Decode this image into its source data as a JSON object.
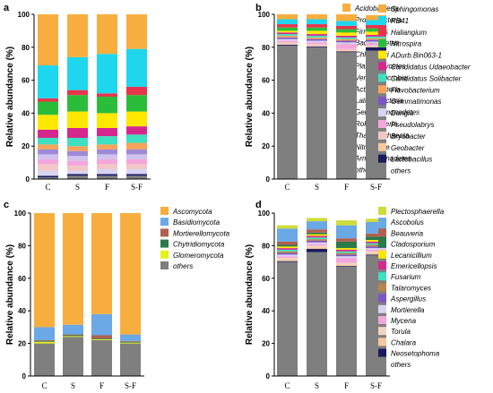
{
  "chart_data": [
    {
      "panel": "a",
      "type": "bar",
      "stacked": true,
      "ylabel": "Relative abundance (%)",
      "ylim": [
        0,
        100
      ],
      "yticks": [
        "0",
        "20",
        "40",
        "60",
        "80",
        "100"
      ],
      "categories": [
        "C",
        "S",
        "F",
        "S-F"
      ],
      "series": [
        {
          "name": "others",
          "color": "#7f7f7f",
          "values": [
            1,
            2,
            2,
            2
          ]
        },
        {
          "name": "Armatimonadetes",
          "color": "#1a1a5e",
          "values": [
            1,
            1,
            1,
            1
          ]
        },
        {
          "name": "Nitrospirae",
          "color": "#d8d4f2",
          "values": [
            3,
            2,
            3,
            3
          ]
        },
        {
          "name": "Thaumarchaeota",
          "color": "#f2c6c6",
          "values": [
            4,
            3,
            3,
            3
          ]
        },
        {
          "name": "Rokubacteria",
          "color": "#f4a6dc",
          "values": [
            3,
            3,
            3,
            3
          ]
        },
        {
          "name": "Gemmatimonadetes",
          "color": "#cfc2ec",
          "values": [
            3,
            3,
            3,
            3
          ]
        },
        {
          "name": "Latescibacteria",
          "color": "#9f8ad8",
          "values": [
            3,
            3,
            3,
            3
          ]
        },
        {
          "name": "Actinobacteria",
          "color": "#f7a35c",
          "values": [
            3,
            3,
            3,
            4
          ]
        },
        {
          "name": "Verrucomicrobia",
          "color": "#3de0c0",
          "values": [
            4,
            5,
            5,
            5
          ]
        },
        {
          "name": "Planctomycetes",
          "color": "#d6278f",
          "values": [
            5,
            6,
            5,
            5
          ]
        },
        {
          "name": "Chloroflexi",
          "color": "#ffe800",
          "values": [
            9,
            10,
            9,
            9
          ]
        },
        {
          "name": "Bacteroidetes",
          "color": "#2bbd3a",
          "values": [
            8,
            10,
            10,
            10
          ]
        },
        {
          "name": "Firmicutes",
          "color": "#e8344a",
          "values": [
            2,
            3,
            2,
            5
          ]
        },
        {
          "name": "Proteobacteria",
          "color": "#1fd6ef",
          "values": [
            20,
            20,
            24,
            23
          ]
        },
        {
          "name": "Acidobacteria",
          "color": "#f8ae3f",
          "values": [
            31,
            26,
            24,
            21
          ]
        }
      ]
    },
    {
      "panel": "b",
      "type": "bar",
      "stacked": true,
      "ylabel": "Relative abundance (%)",
      "ylim": [
        0,
        100
      ],
      "yticks": [
        "0",
        "20",
        "40",
        "60",
        "80",
        "100"
      ],
      "categories": [
        "C",
        "S",
        "F",
        "S-F"
      ],
      "series": [
        {
          "name": "others",
          "color": "#7f7f7f",
          "values": [
            81,
            80,
            77,
            78
          ]
        },
        {
          "name": "Lactobacillus",
          "color": "#1a1a5e",
          "values": [
            0.5,
            0.5,
            0.5,
            2
          ]
        },
        {
          "name": "Geobacter",
          "color": "#f7c8a0",
          "values": [
            0.5,
            0.5,
            0.5,
            0.5
          ]
        },
        {
          "name": "Bryobacter",
          "color": "#f2c6c6",
          "values": [
            1,
            1,
            1,
            1
          ]
        },
        {
          "name": "Pseudolabrys",
          "color": "#f4a6dc",
          "values": [
            1,
            1,
            3,
            1
          ]
        },
        {
          "name": "Dongia",
          "color": "#d8d4f2",
          "values": [
            1,
            1,
            1,
            1
          ]
        },
        {
          "name": "Gemmatimonas",
          "color": "#7d55c7",
          "values": [
            1,
            1,
            1,
            1
          ]
        },
        {
          "name": "Flavobacterium",
          "color": "#f7a35c",
          "values": [
            1,
            1,
            1,
            1
          ]
        },
        {
          "name": "Candidatus Solibacter",
          "color": "#3de0c0",
          "values": [
            1,
            1,
            1,
            1
          ]
        },
        {
          "name": "Candidatus Udaeobacter",
          "color": "#d6278f",
          "values": [
            1,
            1,
            1,
            1
          ]
        },
        {
          "name": "ADurb.Bin063-1",
          "color": "#ffe800",
          "values": [
            1,
            2,
            2,
            2
          ]
        },
        {
          "name": "Nitrospira",
          "color": "#2bbd3a",
          "values": [
            2,
            2,
            2,
            2
          ]
        },
        {
          "name": "Haliangium",
          "color": "#e8344a",
          "values": [
            2,
            2,
            2,
            2
          ]
        },
        {
          "name": "RB41",
          "color": "#1fd6ef",
          "values": [
            3,
            3,
            3,
            3
          ]
        },
        {
          "name": "Sphingomonas",
          "color": "#f8ae3f",
          "values": [
            3,
            3,
            4,
            3
          ]
        }
      ]
    },
    {
      "panel": "c",
      "type": "bar",
      "stacked": true,
      "ylabel": "Relative abundance (%)",
      "ylim": [
        0,
        100
      ],
      "yticks": [
        "0",
        "20",
        "40",
        "60",
        "80",
        "100"
      ],
      "categories": [
        "C",
        "S",
        "F",
        "S-F"
      ],
      "series": [
        {
          "name": "others",
          "color": "#7f7f7f",
          "values": [
            20,
            24,
            22,
            20
          ]
        },
        {
          "name": "Glomeromycota",
          "color": "#e4f21a",
          "values": [
            1,
            0.5,
            0.5,
            0.5
          ]
        },
        {
          "name": "Chytridiomycota",
          "color": "#2a7a4a",
          "values": [
            0.5,
            0.5,
            0.5,
            0.5
          ]
        },
        {
          "name": "Mortierellomycota",
          "color": "#b06050",
          "values": [
            0.5,
            0.5,
            2,
            0.5
          ]
        },
        {
          "name": "Basidiomycota",
          "color": "#6aa8e6",
          "values": [
            8,
            6,
            13,
            4
          ]
        },
        {
          "name": "Ascomycota",
          "color": "#f8ae3f",
          "values": [
            70,
            68.5,
            62,
            74.5
          ]
        }
      ]
    },
    {
      "panel": "d",
      "type": "bar",
      "stacked": true,
      "ylabel": "Relative abundance (%)",
      "ylim": [
        0,
        100
      ],
      "yticks": [
        "0",
        "20",
        "40",
        "60",
        "80",
        "100"
      ],
      "categories": [
        "C",
        "S",
        "F",
        "S-F"
      ],
      "series": [
        {
          "name": "others",
          "color": "#7f7f7f",
          "values": [
            70,
            76,
            67,
            74
          ]
        },
        {
          "name": "Neosetophoma",
          "color": "#1a1a5e",
          "values": [
            0.5,
            2,
            0.5,
            0.5
          ]
        },
        {
          "name": "Chalara",
          "color": "#f7c8a0",
          "values": [
            1,
            1,
            1,
            1
          ]
        },
        {
          "name": "Torula",
          "color": "#f2d4c0",
          "values": [
            1,
            1,
            1,
            1
          ]
        },
        {
          "name": "Mycena",
          "color": "#f4a6dc",
          "values": [
            1,
            1,
            3,
            1
          ]
        },
        {
          "name": "Mortierella",
          "color": "#d8d4f2",
          "values": [
            1,
            1,
            1,
            1
          ]
        },
        {
          "name": "Aspergillus",
          "color": "#7d55c7",
          "values": [
            1,
            1,
            1,
            1
          ]
        },
        {
          "name": "Talaromyces",
          "color": "#b8844a",
          "values": [
            1,
            1,
            1,
            1
          ]
        },
        {
          "name": "Fusarium",
          "color": "#3de0c0",
          "values": [
            1,
            1,
            1,
            1
          ]
        },
        {
          "name": "Emericellopsis",
          "color": "#d6278f",
          "values": [
            1,
            1,
            1,
            1
          ]
        },
        {
          "name": "Lecanicillium",
          "color": "#ffe800",
          "values": [
            1,
            1,
            1,
            1
          ]
        },
        {
          "name": "Cladosporium",
          "color": "#2a7a4a",
          "values": [
            1,
            1,
            4,
            2
          ]
        },
        {
          "name": "Beauveria",
          "color": "#b06050",
          "values": [
            2,
            2,
            2,
            2
          ]
        },
        {
          "name": "Ascobolus",
          "color": "#6aa8e6",
          "values": [
            8,
            5,
            8,
            7
          ]
        },
        {
          "name": "Plectosphaerella",
          "color": "#cddc39",
          "values": [
            2,
            2,
            3,
            2
          ]
        }
      ]
    }
  ]
}
